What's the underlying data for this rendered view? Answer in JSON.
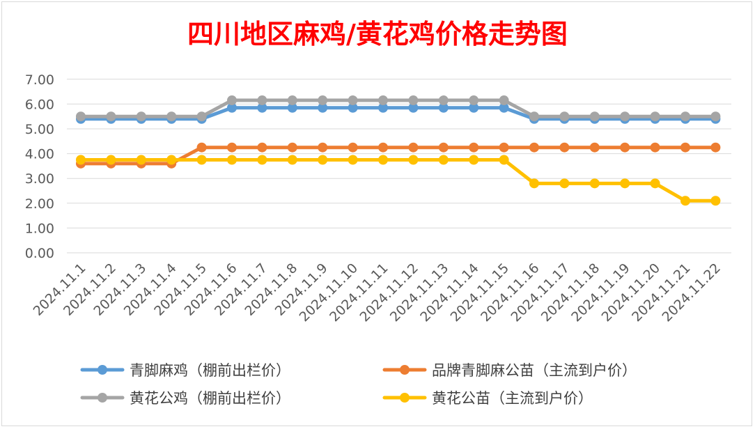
{
  "chart_data": {
    "type": "line",
    "title": "四川地区麻鸡/黄花鸡价格走势图",
    "xlabel": "",
    "ylabel": "",
    "ylim": [
      0,
      7
    ],
    "yticks": [
      "0.00",
      "1.00",
      "2.00",
      "3.00",
      "4.00",
      "5.00",
      "6.00",
      "7.00"
    ],
    "grid": true,
    "legend_position": "bottom",
    "categories": [
      "2024.11.1",
      "2024.11.2",
      "2024.11.3",
      "2024.11.4",
      "2024.11.5",
      "2024.11.6",
      "2024.11.7",
      "2024.11.8",
      "2024.11.9",
      "2024.11.10",
      "2024.11.11",
      "2024.11.12",
      "2024.11.13",
      "2024.11.14",
      "2024.11.15",
      "2024.11.16",
      "2024.11.17",
      "2024.11.18",
      "2024.11.19",
      "2024.11.20",
      "2024.11.21",
      "2024.11.22"
    ],
    "series": [
      {
        "name": "青脚麻鸡（棚前出栏价）",
        "color": "#5b9bd5",
        "values": [
          5.4,
          5.4,
          5.4,
          5.4,
          5.4,
          5.85,
          5.85,
          5.85,
          5.85,
          5.85,
          5.85,
          5.85,
          5.85,
          5.85,
          5.85,
          5.4,
          5.4,
          5.4,
          5.4,
          5.4,
          5.4,
          5.4
        ]
      },
      {
        "name": "品牌青脚麻公苗（主流到户价）",
        "color": "#ed7d31",
        "values": [
          3.6,
          3.6,
          3.6,
          3.6,
          4.25,
          4.25,
          4.25,
          4.25,
          4.25,
          4.25,
          4.25,
          4.25,
          4.25,
          4.25,
          4.25,
          4.25,
          4.25,
          4.25,
          4.25,
          4.25,
          4.25,
          4.25
        ]
      },
      {
        "name": "黄花公鸡（棚前出栏价）",
        "color": "#a5a5a5",
        "values": [
          5.5,
          5.5,
          5.5,
          5.5,
          5.5,
          6.15,
          6.15,
          6.15,
          6.15,
          6.15,
          6.15,
          6.15,
          6.15,
          6.15,
          6.15,
          5.5,
          5.5,
          5.5,
          5.5,
          5.5,
          5.5,
          5.5
        ]
      },
      {
        "name": "黄花公苗（主流到户价）",
        "color": "#ffc000",
        "values": [
          3.75,
          3.75,
          3.75,
          3.75,
          3.75,
          3.75,
          3.75,
          3.75,
          3.75,
          3.75,
          3.75,
          3.75,
          3.75,
          3.75,
          3.75,
          2.8,
          2.8,
          2.8,
          2.8,
          2.8,
          2.1,
          2.1
        ]
      }
    ]
  }
}
